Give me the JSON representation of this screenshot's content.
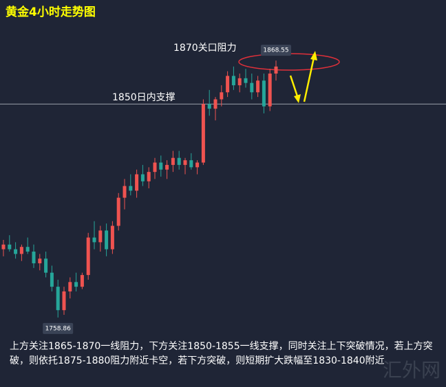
{
  "chart_data": {
    "type": "candlestick",
    "title": "黄金4小时走势图",
    "resistance_label": "1870关口阻力",
    "support_label": "1850日内支撑",
    "support_line": 1850,
    "high_label": "1868.55",
    "low_label": "1758.86",
    "note": "上方关注1865-1870一线阻力，下方关注1850-1855一线支撑，同时关注上下突破情况，若上方突破，则依托1875-1880阻力附近卡空，若下方突破，则短期扩大跌幅至1830-1840附近",
    "watermark": "汇外网",
    "up_color": "#ef5350",
    "down_color": "#26a69a",
    "ylim": [
      1729.2,
      1894.4
    ],
    "categories": [
      null,
      null,
      null,
      null,
      null,
      null,
      null,
      null,
      null,
      null,
      null,
      null,
      null,
      null,
      null,
      null,
      null,
      null,
      null,
      null,
      null,
      null,
      null,
      null,
      null,
      null,
      null,
      null,
      null,
      null,
      null,
      null,
      null,
      null,
      null,
      null,
      null,
      null,
      null,
      null,
      null,
      null,
      null,
      null,
      null,
      null
    ],
    "open": [
      1788,
      1790,
      1788,
      1786,
      1789,
      1787,
      1782,
      1784,
      1778,
      1772,
      1762,
      1770,
      1774,
      1772,
      1777,
      1793,
      1791,
      1796,
      1788,
      1798,
      1810,
      1815,
      1813,
      1820,
      1817,
      1821,
      1825,
      1822,
      1824,
      1827,
      1824,
      1826,
      1823,
      1825,
      1850,
      1848,
      1852,
      1855,
      1862,
      1858,
      1861,
      1859,
      1855,
      1860,
      1849,
      1863
    ],
    "high": [
      1792,
      1794,
      1791,
      1790,
      1793,
      1790,
      1786,
      1787,
      1781,
      1775,
      1772,
      1776,
      1778,
      1778,
      1795,
      1800,
      1798,
      1799,
      1800,
      1812,
      1818,
      1820,
      1822,
      1824,
      1823,
      1827,
      1828,
      1826,
      1830,
      1830,
      1827,
      1829,
      1826,
      1852,
      1856,
      1853,
      1858,
      1864,
      1866,
      1863,
      1865,
      1863,
      1862,
      1863,
      1865,
      1868.55
    ],
    "low": [
      1785,
      1787,
      1784,
      1783,
      1786,
      1780,
      1779,
      1776,
      1770,
      1758.86,
      1760,
      1767,
      1770,
      1771,
      1775,
      1788,
      1787,
      1785,
      1786,
      1796,
      1805,
      1811,
      1810,
      1815,
      1814,
      1818,
      1819,
      1818,
      1821,
      1822,
      1820,
      1822,
      1820,
      1824,
      1845,
      1843,
      1849,
      1853,
      1856,
      1855,
      1857,
      1852,
      1853,
      1846,
      1847,
      1860
    ],
    "close": [
      1790,
      1788,
      1786,
      1789,
      1787,
      1782,
      1784,
      1778,
      1772,
      1762,
      1770,
      1774,
      1772,
      1777,
      1793,
      1791,
      1796,
      1788,
      1798,
      1810,
      1815,
      1813,
      1820,
      1817,
      1821,
      1825,
      1822,
      1824,
      1827,
      1824,
      1826,
      1823,
      1825,
      1850,
      1848,
      1852,
      1855,
      1862,
      1858,
      1861,
      1859,
      1855,
      1860,
      1849,
      1863,
      1866
    ]
  }
}
